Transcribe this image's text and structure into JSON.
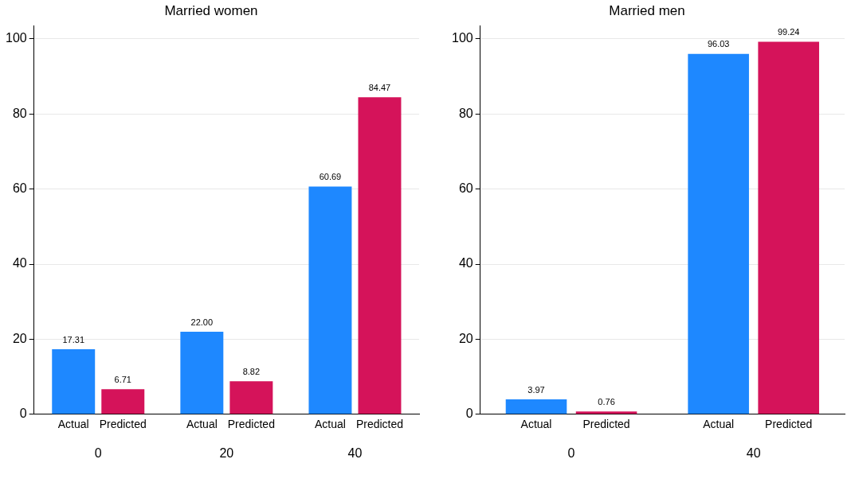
{
  "chart_data": [
    {
      "type": "bar",
      "title": "Married women",
      "categories": [
        "0",
        "20",
        "40"
      ],
      "series": [
        {
          "name": "Actual",
          "color": "#1e88ff",
          "values": [
            17.31,
            22.0,
            60.69
          ],
          "value_labels": [
            "17.31",
            "22.00",
            "60.69"
          ]
        },
        {
          "name": "Predicted",
          "color": "#d5135a",
          "values": [
            6.71,
            8.82,
            84.47
          ],
          "value_labels": [
            "6.71",
            "8.82",
            "84.47"
          ]
        }
      ],
      "ylim": [
        0,
        103.5
      ],
      "yticks": [
        0,
        20,
        40,
        60,
        80,
        100
      ],
      "grid": "y",
      "legend": false
    },
    {
      "type": "bar",
      "title": "Married men",
      "categories": [
        "0",
        "40"
      ],
      "series": [
        {
          "name": "Actual",
          "color": "#1e88ff",
          "values": [
            3.97,
            96.03
          ],
          "value_labels": [
            "3.97",
            "96.03"
          ]
        },
        {
          "name": "Predicted",
          "color": "#d5135a",
          "values": [
            0.76,
            99.24
          ],
          "value_labels": [
            "0.76",
            "99.24"
          ]
        }
      ],
      "ylim": [
        0,
        103.5
      ],
      "yticks": [
        0,
        20,
        40,
        60,
        80,
        100
      ],
      "grid": "y",
      "legend": false
    }
  ]
}
